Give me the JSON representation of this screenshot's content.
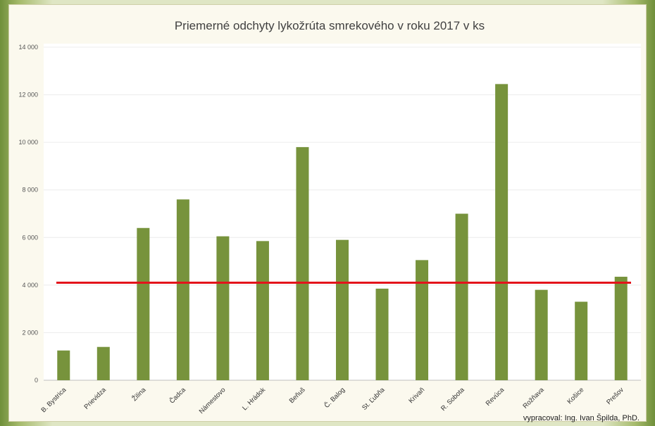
{
  "chart_data": {
    "type": "bar",
    "title": "Priemerné odchyty lykožrúta smrekového v roku 2017 v ks",
    "xlabel": "",
    "ylabel": "",
    "ylim": [
      0,
      14000
    ],
    "yticks": [
      0,
      2000,
      4000,
      6000,
      8000,
      10000,
      12000,
      14000
    ],
    "ytick_labels": [
      "0",
      "2 000",
      "4 000",
      "6 000",
      "8 000",
      "10 000",
      "12 000",
      "14 000"
    ],
    "grid": true,
    "legend": "none",
    "categories": [
      "B. Bystrica",
      "Prievidza",
      "Žilina",
      "Čadca",
      "Námestovo",
      "L. Hrádok",
      "Beňuš",
      "Č. Balog",
      "St. Ľubňa",
      "Krivaň",
      "R. Sobota",
      "Revúca",
      "Rožňava",
      "Košice",
      "Prešov"
    ],
    "values": [
      1250,
      1400,
      6400,
      7600,
      6050,
      5850,
      9800,
      5900,
      3850,
      5050,
      7000,
      12450,
      3800,
      3300,
      4350
    ],
    "reference_line": {
      "value": 4100,
      "color": "#e3141b"
    },
    "bar_color": "#77933c"
  },
  "credit": "vypracoval: Ing. Ivan Špilda, PhD."
}
